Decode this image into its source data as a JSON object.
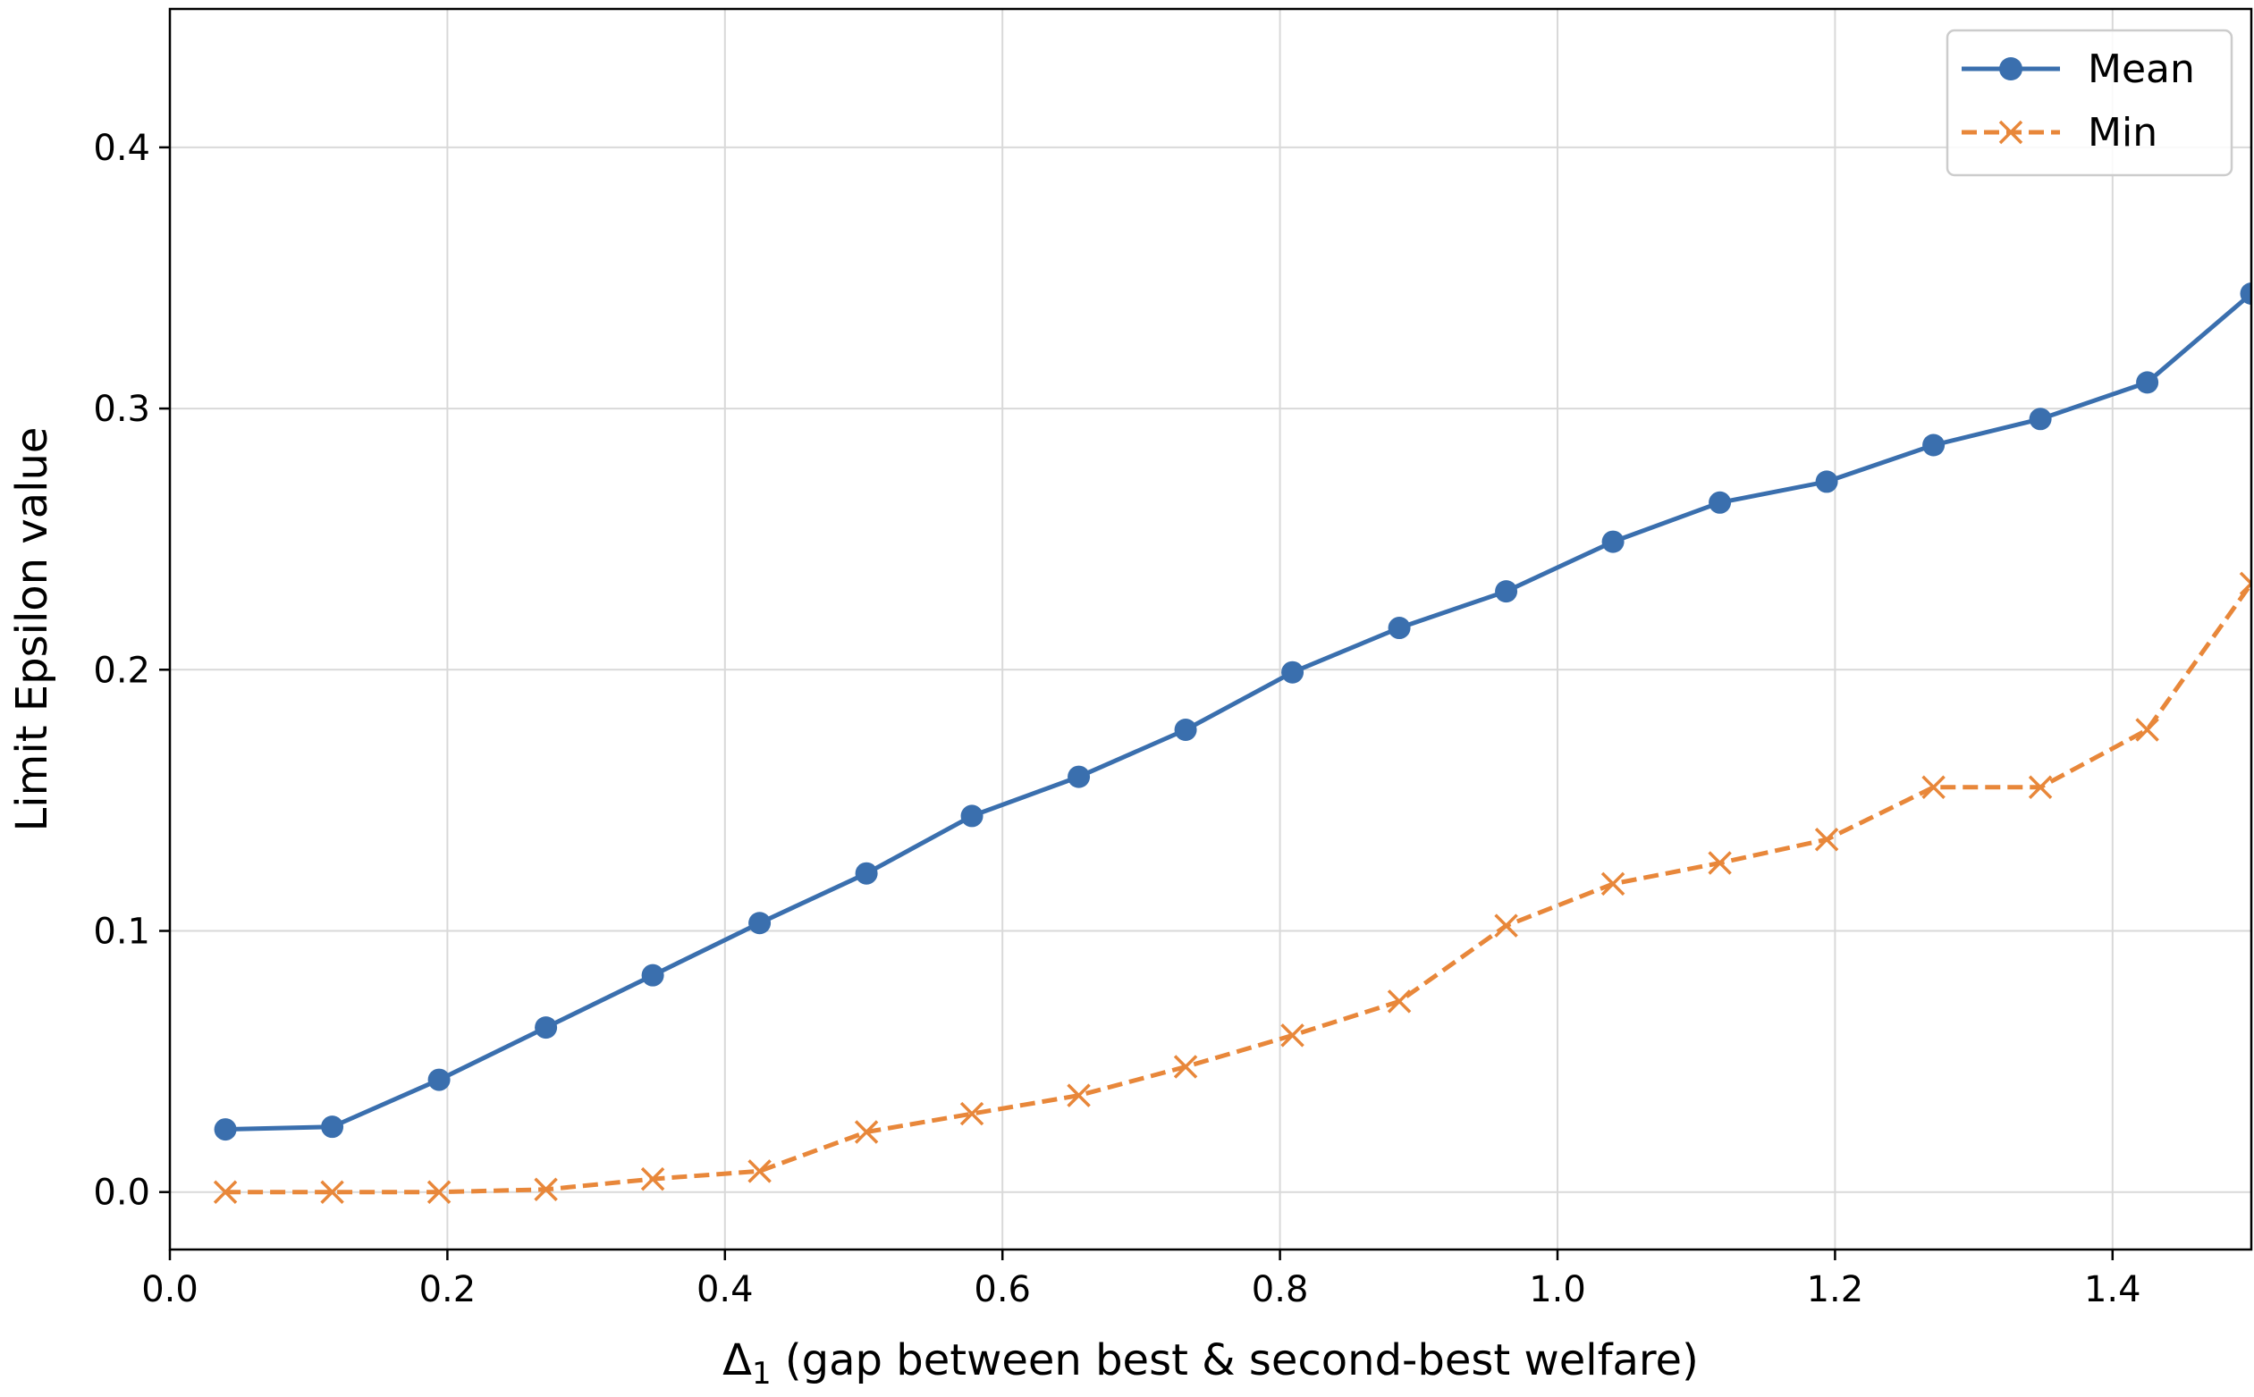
{
  "chart_data": {
    "type": "line",
    "title": "",
    "xlabel": "Δ",
    "xlabel_subscript": "1",
    "xlabel_rest": " (gap between best & second-best welfare)",
    "ylabel": "Limit Epsilon value",
    "xlim": [
      0.0,
      1.5
    ],
    "ylim": [
      -0.022,
      0.453
    ],
    "xticks": [
      0.0,
      0.2,
      0.4,
      0.6,
      0.8,
      1.0,
      1.2,
      1.4
    ],
    "xtick_labels": [
      "0.0",
      "0.2",
      "0.4",
      "0.6",
      "0.8",
      "1.0",
      "1.2",
      "1.4"
    ],
    "yticks": [
      0.0,
      0.1,
      0.2,
      0.3,
      0.4
    ],
    "ytick_labels": [
      "0.0",
      "0.1",
      "0.2",
      "0.3",
      "0.4"
    ],
    "grid": true,
    "legend_position": "top-right",
    "x": [
      0.04,
      0.117,
      0.194,
      0.271,
      0.348,
      0.425,
      0.502,
      0.578,
      0.655,
      0.732,
      0.809,
      0.886,
      0.963,
      1.04,
      1.117,
      1.194,
      1.271,
      1.348,
      1.425,
      1.5
    ],
    "series": [
      {
        "name": "Mean",
        "color": "#3a6fae",
        "line_style": "solid",
        "marker": "circle",
        "values": [
          0.024,
          0.025,
          0.043,
          0.063,
          0.083,
          0.103,
          0.122,
          0.144,
          0.159,
          0.177,
          0.199,
          0.216,
          0.23,
          0.249,
          0.264,
          0.272,
          0.286,
          0.296,
          0.31,
          0.344
        ]
      },
      {
        "name": "Min",
        "color": "#e8873a",
        "line_style": "dashed",
        "marker": "x",
        "values": [
          0.0,
          0.0,
          0.0,
          0.001,
          0.005,
          0.008,
          0.023,
          0.03,
          0.037,
          0.048,
          0.06,
          0.073,
          0.102,
          0.118,
          0.126,
          0.135,
          0.155,
          0.155,
          0.177,
          0.233
        ]
      }
    ]
  }
}
